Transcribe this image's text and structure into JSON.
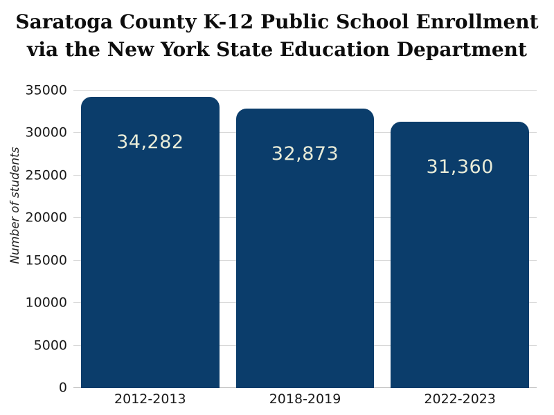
{
  "title": {
    "line1": "Saratoga County K-12 Public School Enrollment",
    "line2": "via the New York State Education Department"
  },
  "chart_data": {
    "type": "bar",
    "title": "Saratoga County K-12 Public School Enrollment via the New York State Education Department",
    "categories": [
      "2012-2013",
      "2018-2019",
      "2022-2023"
    ],
    "values": [
      34282,
      32873,
      31360
    ],
    "value_labels": [
      "34,282",
      "32,873",
      "31,360"
    ],
    "xlabel": "",
    "ylabel": "Number of students",
    "ylim": [
      0,
      35000
    ],
    "yticks": [
      0,
      5000,
      10000,
      15000,
      20000,
      25000,
      30000,
      35000
    ],
    "grid": "horizontal",
    "legend": "none",
    "colors": {
      "bar": "#0b3d6b",
      "bar_label": "#e9ecd8",
      "gridline": "#d8d8d8",
      "baseline": "#bfbfbf",
      "axis_text": "#1a1a1a",
      "title_text": "#0d0d0d",
      "background": "#ffffff"
    }
  }
}
